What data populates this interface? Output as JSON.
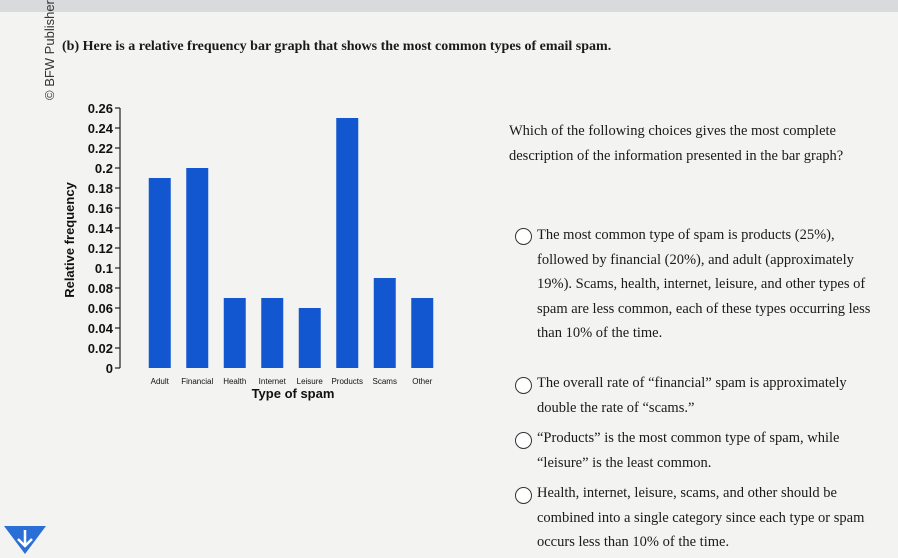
{
  "credit": "© BFW Publishers",
  "prompt": "(b) Here is a relative frequency bar graph that shows the most common types of email spam.",
  "question": "Which of the following choices gives the most complete description of the information presented in the bar graph?",
  "options": [
    "The most common type of spam is products (25%), followed by financial (20%), and adult (approximately 19%). Scams, health, internet, leisure, and other types of spam are less common, each of these types occurring less than 10% of the time.",
    "The overall rate of “financial” spam is approximately double the rate of “scams.”",
    "“Products” is the most common type of spam, while “leisure” is the least common.",
    "Health, internet, leisure, scams, and other should be combined into a single category since each type or spam occurs less than 10% of the time."
  ],
  "chart_data": {
    "type": "bar",
    "x_label": "Type of spam",
    "y_label": "Relative frequency",
    "categories": [
      "Adult",
      "Financial",
      "Health",
      "Internet",
      "Leisure",
      "Products",
      "Scams",
      "Other"
    ],
    "values": [
      0.19,
      0.2,
      0.07,
      0.07,
      0.06,
      0.25,
      0.09,
      0.07
    ],
    "color": "#1257d0",
    "ylim": [
      0,
      0.26
    ],
    "yticks": [
      0,
      0.02,
      0.04,
      0.06,
      0.08,
      0.1,
      0.12,
      0.14,
      0.16,
      0.18,
      0.2,
      0.22,
      0.24,
      0.26
    ]
  }
}
